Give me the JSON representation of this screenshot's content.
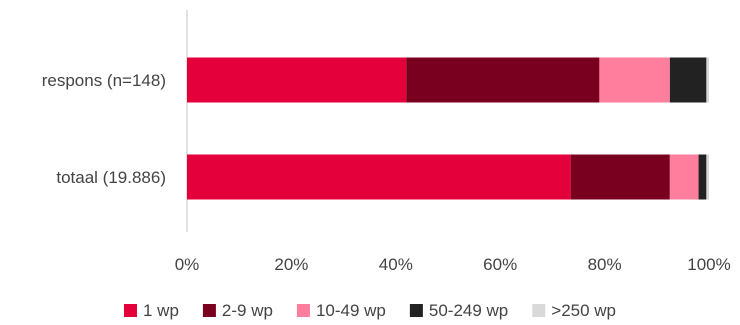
{
  "chart_data": {
    "type": "bar",
    "orientation": "horizontal",
    "stacked": true,
    "percent": true,
    "categories": [
      "respons (n=148)",
      "totaal (19.886)"
    ],
    "series": [
      {
        "name": "1 wp",
        "color": "#e4003a",
        "values": [
          42,
          73.5
        ]
      },
      {
        "name": "2-9 wp",
        "color": "#7a0020",
        "values": [
          37,
          19
        ]
      },
      {
        "name": "10-49 wp",
        "color": "#ff7e9e",
        "values": [
          13.5,
          5.5
        ]
      },
      {
        "name": "50-249 wp",
        "color": "#222222",
        "values": [
          7,
          1.5
        ]
      },
      {
        "name": ">250 wp",
        "color": "#d9d9d9",
        "values": [
          0.5,
          0.5
        ]
      }
    ],
    "xlim": [
      0,
      100
    ],
    "x_ticks": [
      "0%",
      "20%",
      "40%",
      "60%",
      "80%",
      "100%"
    ],
    "grid": false,
    "legend_position": "bottom"
  }
}
